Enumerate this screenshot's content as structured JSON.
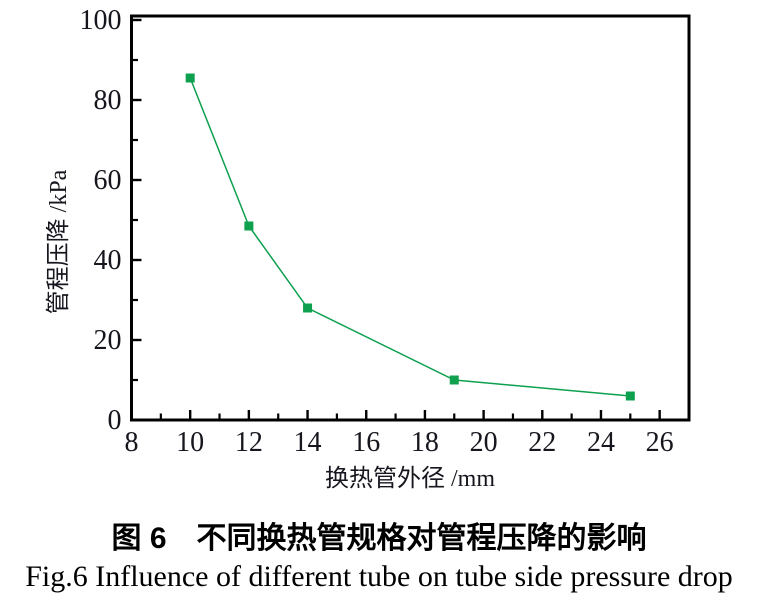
{
  "figure": {
    "caption_zh": "图 6　不同换热管规格对管程压降的影响",
    "caption_en": "Fig.6 Influence of different tube on tube side pressure drop"
  },
  "chart_data": {
    "type": "line",
    "title": "",
    "xlabel": "换热管外径 /mm",
    "ylabel": "管程压降 /kPa",
    "x": [
      10,
      12,
      14,
      19,
      25
    ],
    "y": [
      85.5,
      48.5,
      28,
      10,
      6
    ],
    "series": [
      {
        "name": "管程压降",
        "x": [
          10,
          12,
          14,
          19,
          25
        ],
        "values": [
          85.5,
          48.5,
          28,
          10,
          6
        ]
      }
    ],
    "xlim": [
      8,
      27
    ],
    "ylim": [
      0,
      101
    ],
    "x_major_ticks": [
      8,
      10,
      12,
      14,
      16,
      18,
      20,
      22,
      24,
      26
    ],
    "x_minor_ticks": [
      9,
      11,
      13,
      15,
      17,
      19,
      21,
      23,
      25,
      27
    ],
    "y_major_ticks": [
      0,
      20,
      40,
      60,
      80,
      100
    ],
    "y_minor_ticks": [
      10,
      30,
      50,
      70,
      90
    ],
    "grid": false,
    "legend": null,
    "marker": "square",
    "marker_size": 9,
    "line_color": "#0da04e",
    "marker_color": "#0da04e",
    "axis_color": "#000000",
    "tick_label_color": "#16161e",
    "background_color": "#ffffff"
  }
}
